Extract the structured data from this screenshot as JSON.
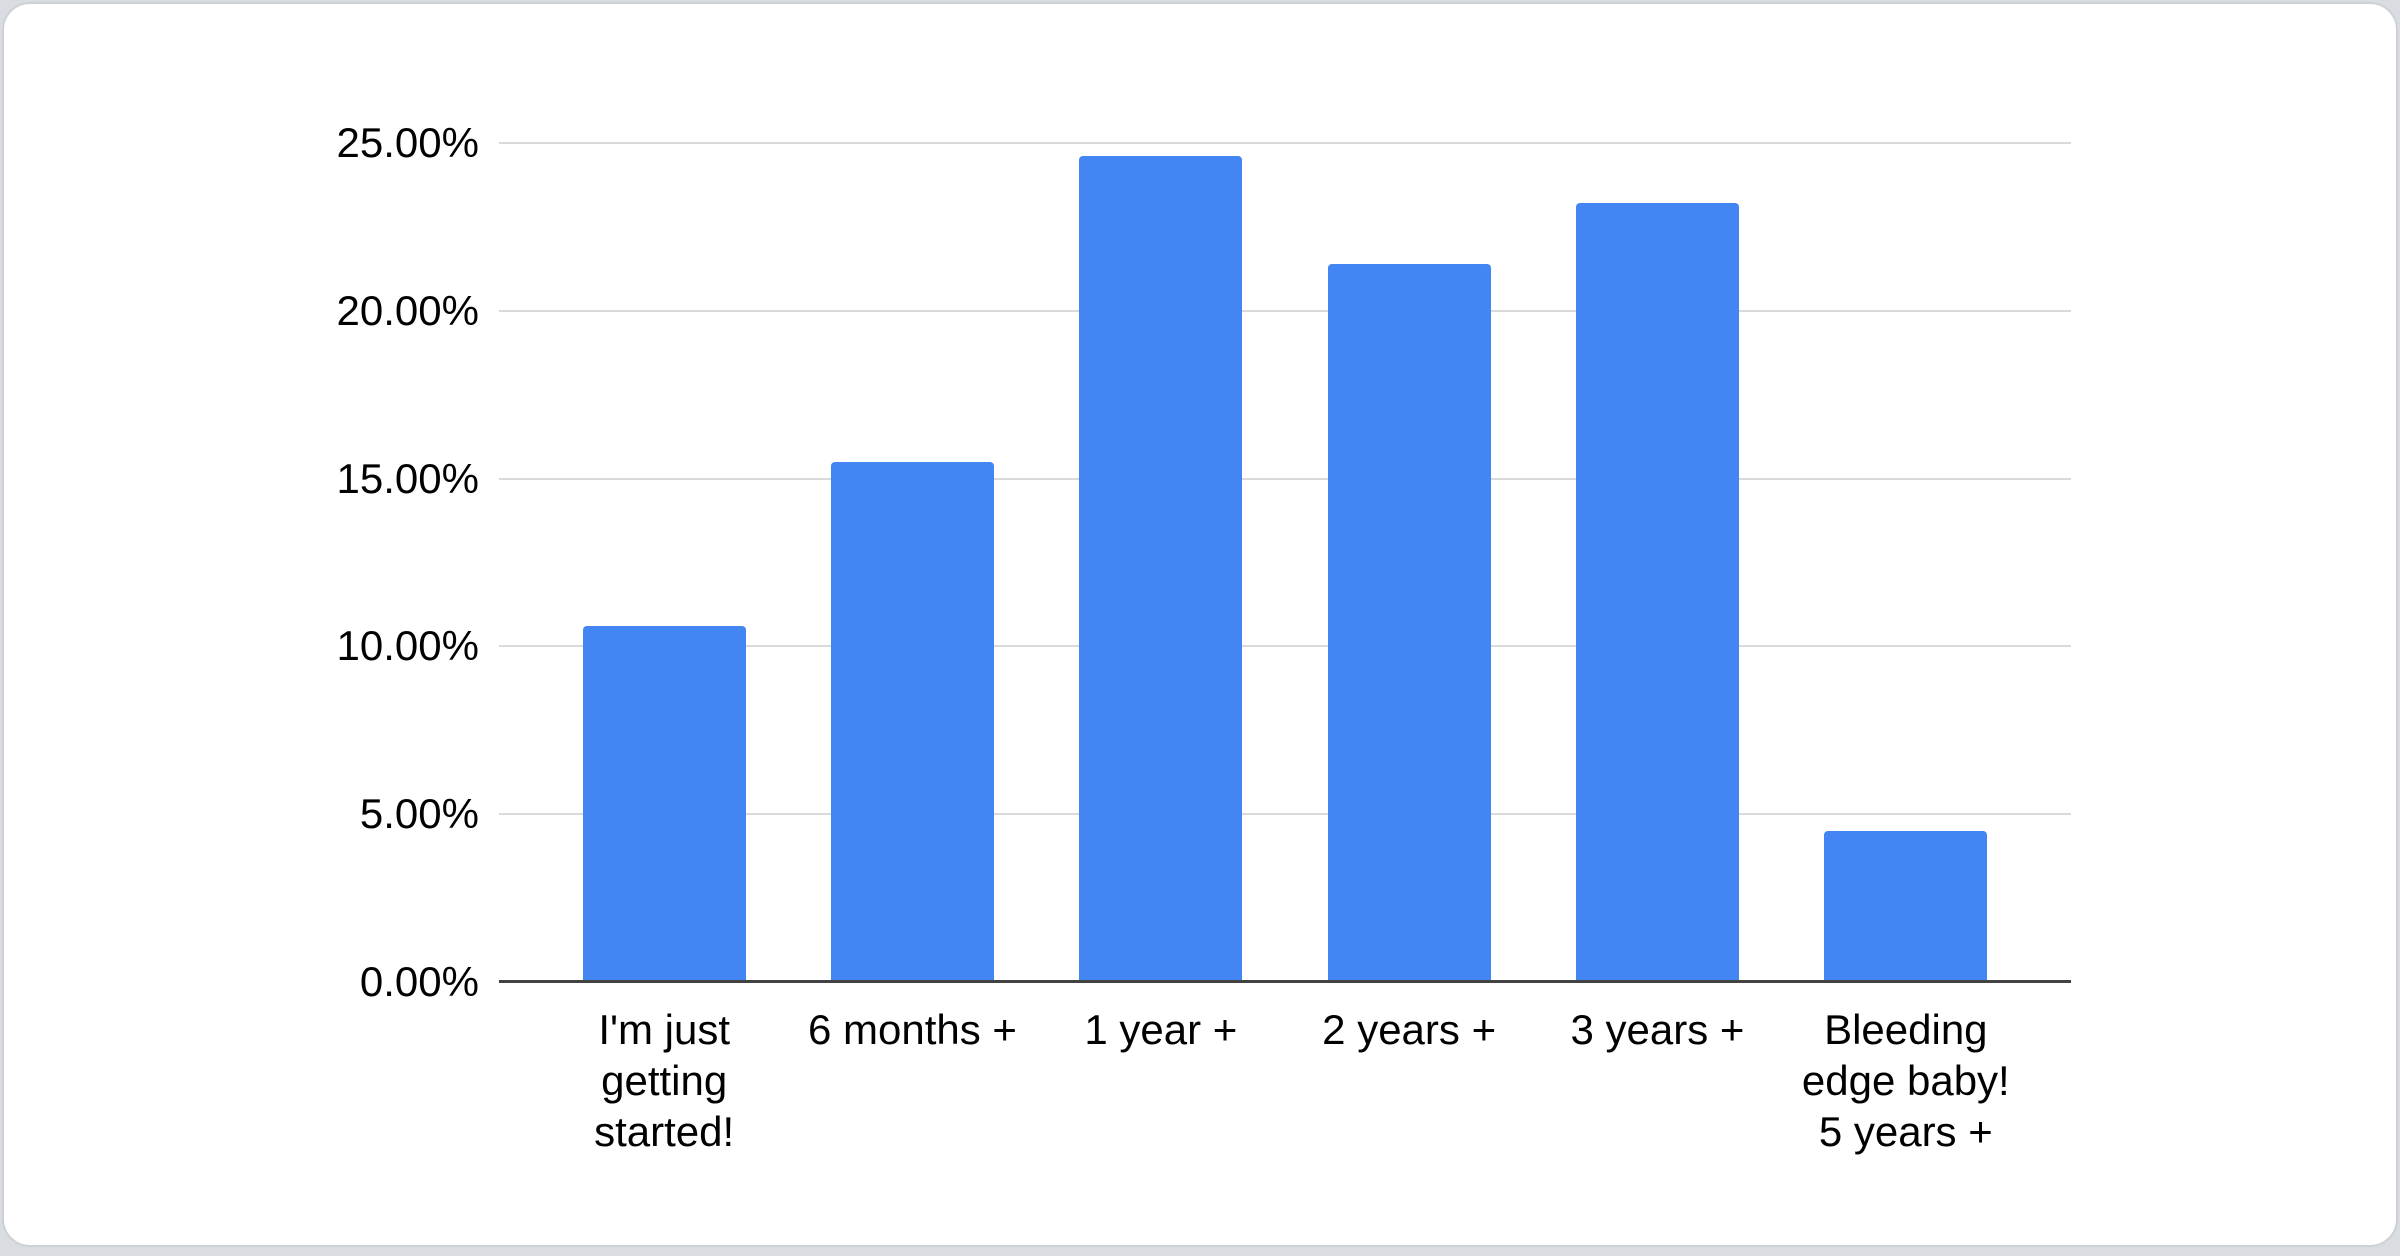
{
  "page": {
    "background_color": "#d9dce0",
    "card_background_color": "#ffffff"
  },
  "chart_data": {
    "type": "bar",
    "title": "",
    "xlabel": "",
    "ylabel": "",
    "categories": [
      "I'm just getting started!",
      "6 months +",
      "1 year +",
      "2 years +",
      "3 years +",
      "Bleeding edge baby! 5 years +"
    ],
    "category_display": [
      "I'm just\ngetting\nstarted!",
      "6 months +",
      "1 year +",
      "2 years +",
      "3 years +",
      "Bleeding\nedge baby!\n5 years +"
    ],
    "values": [
      10.6,
      15.5,
      24.6,
      21.4,
      23.2,
      4.5
    ],
    "value_unit": "%",
    "ylim": [
      0,
      25
    ],
    "y_tick_values": [
      0,
      5,
      10,
      15,
      20,
      25
    ],
    "y_tick_labels": [
      "0.00%",
      "5.00%",
      "10.00%",
      "15.00%",
      "20.00%",
      "25.00%"
    ],
    "grid": true,
    "legend_position": "none",
    "bar_color": "#4485F4",
    "gridline_color": "#dadada",
    "axis_line_color": "#424242",
    "label_color": "#000000"
  }
}
